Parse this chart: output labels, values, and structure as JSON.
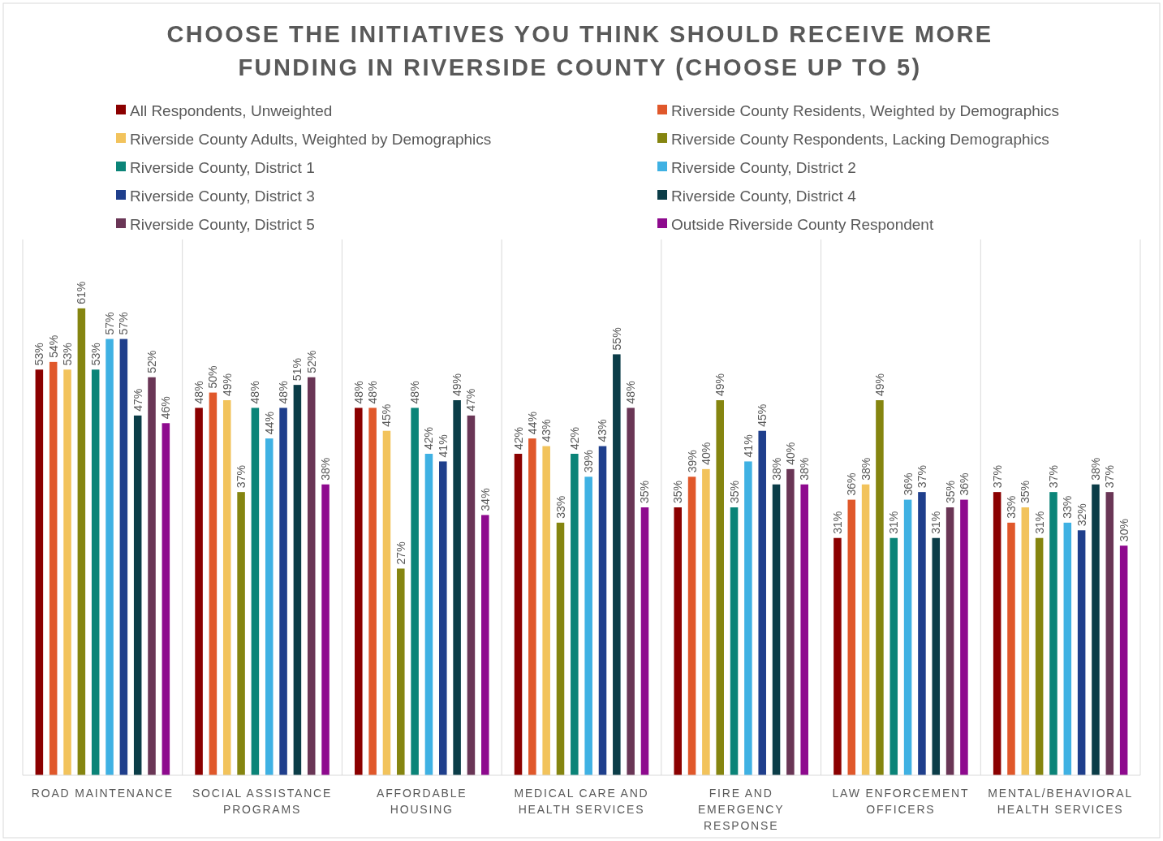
{
  "chart_data": {
    "type": "bar",
    "title": "CHOOSE THE INITIATIVES YOU THINK SHOULD RECEIVE MORE FUNDING IN RIVERSIDE COUNTY (CHOOSE UP TO 5)",
    "categories": [
      "ROAD MAINTENANCE",
      "SOCIAL ASSISTANCE PROGRAMS",
      "AFFORDABLE HOUSING",
      "MEDICAL CARE AND HEALTH SERVICES",
      "FIRE AND EMERGENCY RESPONSE",
      "LAW ENFORCEMENT OFFICERS",
      "MENTAL/BEHAVIORAL HEALTH SERVICES"
    ],
    "ylim": [
      0,
      70
    ],
    "legend": "top",
    "series": [
      {
        "name": "All Respondents, Unweighted",
        "color": "#8b0000",
        "values": [
          53,
          48,
          48,
          42,
          35,
          31,
          37
        ],
        "value_labels": [
          "53%",
          "48%",
          "48%",
          "42%",
          "35%",
          "31%",
          "37%"
        ]
      },
      {
        "name": "Riverside County Residents, Weighted by Demographics",
        "color": "#e0582b",
        "values": [
          54,
          50,
          48,
          44,
          39,
          36,
          33
        ],
        "value_labels": [
          "54%",
          "50%",
          "48%",
          "44%",
          "39%",
          "36%",
          "33%"
        ]
      },
      {
        "name": "Riverside County Adults, Weighted by Demographics",
        "color": "#f2c35c",
        "values": [
          53,
          49,
          45,
          43,
          40,
          38,
          35
        ],
        "value_labels": [
          "53%",
          "49%",
          "45%",
          "43%",
          "40%",
          "38%",
          "35%"
        ]
      },
      {
        "name": "Riverside County Respondents, Lacking Demographics",
        "color": "#858510",
        "values": [
          61,
          37,
          27,
          33,
          49,
          49,
          31
        ],
        "value_labels": [
          "61%",
          "37%",
          "27%",
          "33%",
          "49%",
          "49%",
          "31%"
        ]
      },
      {
        "name": "Riverside County, District 1",
        "color": "#0b8478",
        "values": [
          53,
          48,
          48,
          42,
          35,
          31,
          37
        ],
        "value_labels": [
          "53%",
          "48%",
          "48%",
          "42%",
          "35%",
          "31%",
          "37%"
        ]
      },
      {
        "name": "Riverside County, District 2",
        "color": "#3fb1e3",
        "values": [
          57,
          44,
          42,
          39,
          41,
          36,
          33
        ],
        "value_labels": [
          "57%",
          "44%",
          "42%",
          "39%",
          "41%",
          "36%",
          "33%"
        ]
      },
      {
        "name": "Riverside County, District 3",
        "color": "#1f3f8c",
        "values": [
          57,
          48,
          41,
          43,
          45,
          37,
          32
        ],
        "value_labels": [
          "57%",
          "48%",
          "41%",
          "43%",
          "45%",
          "37%",
          "32%"
        ]
      },
      {
        "name": "Riverside County, District 4",
        "color": "#0b3d48",
        "values": [
          47,
          51,
          49,
          55,
          38,
          31,
          38
        ],
        "value_labels": [
          "47%",
          "51%",
          "49%",
          "55%",
          "38%",
          "31%",
          "38%"
        ]
      },
      {
        "name": "Riverside County, District 5",
        "color": "#6a3656",
        "values": [
          52,
          52,
          47,
          48,
          40,
          35,
          37
        ],
        "value_labels": [
          "52%",
          "52%",
          "47%",
          "48%",
          "40%",
          "35%",
          "37%"
        ]
      },
      {
        "name": "Outside Riverside County Respondent",
        "color": "#8e0a8e",
        "values": [
          46,
          38,
          34,
          35,
          38,
          36,
          30
        ],
        "value_labels": [
          "46%",
          "38%",
          "34%",
          "35%",
          "38%",
          "36%",
          "30%"
        ]
      }
    ]
  }
}
